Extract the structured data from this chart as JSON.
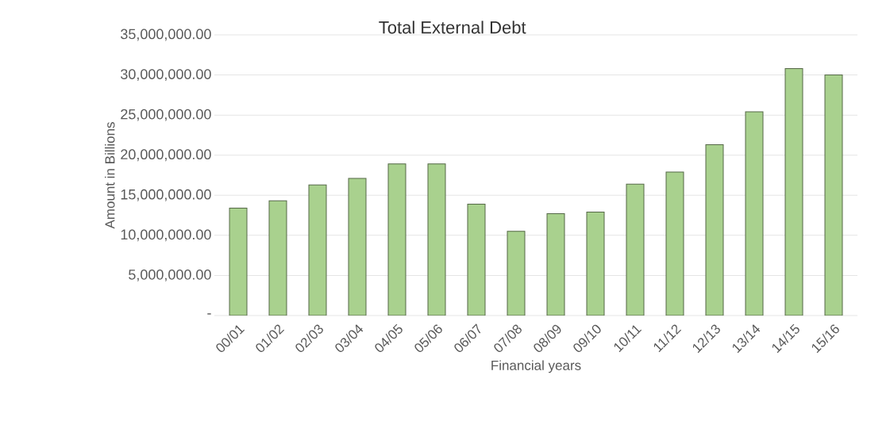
{
  "chart_data": {
    "type": "bar",
    "title": "Total External Debt",
    "xlabel": "Financial years",
    "ylabel": "Amount in Billions",
    "categories": [
      "00/01",
      "01/02",
      "02/03",
      "03/04",
      "04/05",
      "05/06",
      "06/07",
      "07/08",
      "08/09",
      "09/10",
      "10/11",
      "11/12",
      "12/13",
      "13/14",
      "14/15",
      "15/16"
    ],
    "values": [
      13400000,
      14300000,
      16300000,
      17100000,
      18900000,
      18900000,
      13900000,
      10500000,
      12700000,
      12900000,
      16400000,
      17900000,
      21300000,
      25400000,
      30800000,
      30000000
    ],
    "color": "#a9d18e",
    "ylim": [
      0,
      35000000
    ],
    "yticks": [
      {
        "value": 0,
        "label": "-"
      },
      {
        "value": 5000000,
        "label": "5,000,000.00"
      },
      {
        "value": 10000000,
        "label": "10,000,000.00"
      },
      {
        "value": 15000000,
        "label": "15,000,000.00"
      },
      {
        "value": 20000000,
        "label": "20,000,000.00"
      },
      {
        "value": 25000000,
        "label": "25,000,000.00"
      },
      {
        "value": 30000000,
        "label": "30,000,000.00"
      },
      {
        "value": 35000000,
        "label": "35,000,000.00"
      }
    ],
    "grid": "y"
  }
}
